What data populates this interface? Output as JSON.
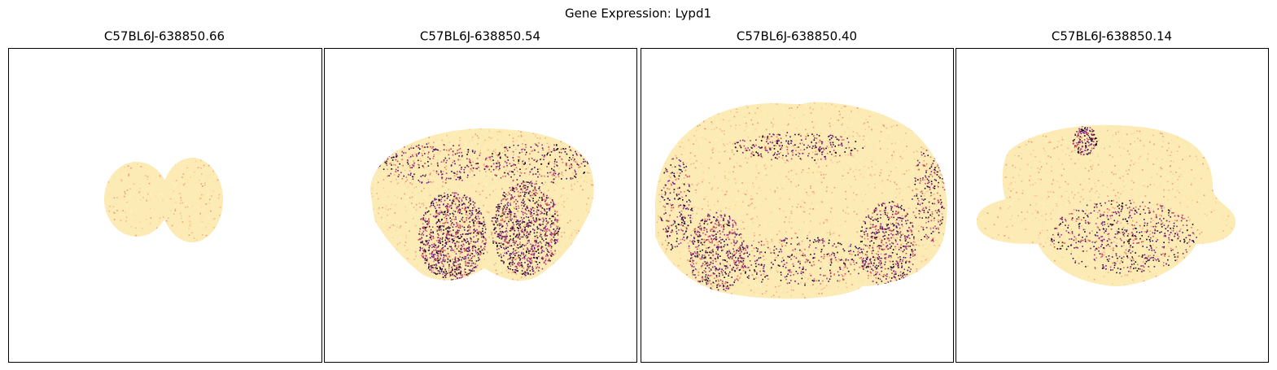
{
  "title": "Gene Expression: Lypd1",
  "panels": [
    {
      "title": "C57BL6J-638850.66"
    },
    {
      "title": "C57BL6J-638850.54"
    },
    {
      "title": "C57BL6J-638850.40"
    },
    {
      "title": "C57BL6J-638850.14"
    }
  ]
}
